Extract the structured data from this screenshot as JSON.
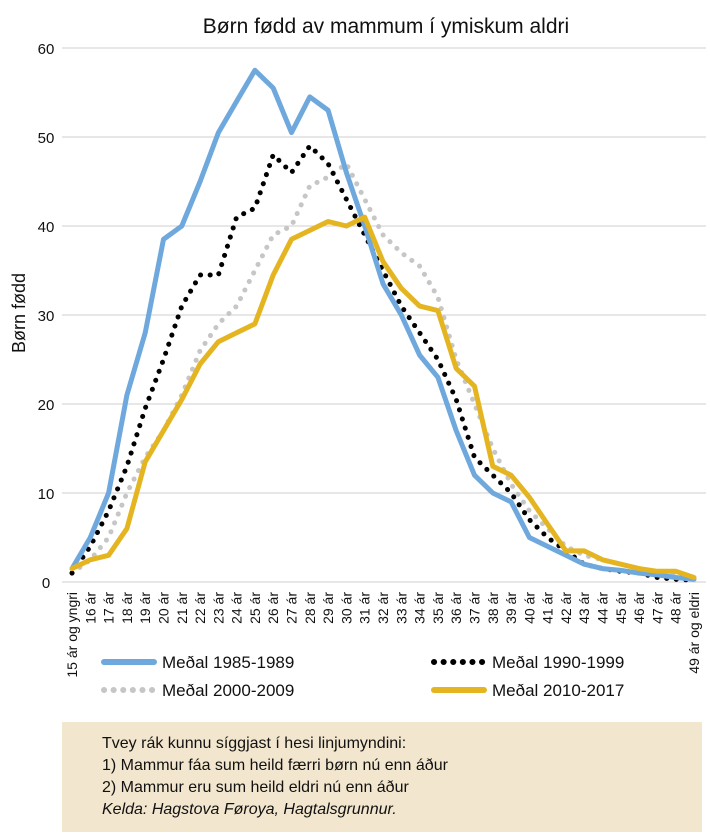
{
  "chart_data": {
    "type": "line",
    "title": "Børn fødd av mammum í ymiskum aldri",
    "ylabel": "Børn fødd",
    "xlabel": "",
    "ylim": [
      0,
      60
    ],
    "yticks": [
      0,
      10,
      20,
      30,
      40,
      50,
      60
    ],
    "grid": "horizontal",
    "legend": "bottom",
    "categories": [
      "15 ár og yngri",
      "16 ár",
      "17 ár",
      "18 ár",
      "19 ár",
      "20 ár",
      "21 ár",
      "22 ár",
      "23 ár",
      "24 ár",
      "25 ár",
      "26 ár",
      "27 ár",
      "28 ár",
      "29 ár",
      "30 ár",
      "31 ár",
      "32 ár",
      "33 ár",
      "34 ár",
      "35 ár",
      "36 ár",
      "37 ár",
      "38 ár",
      "39 ár",
      "40 ár",
      "41 ár",
      "42 ár",
      "43 ár",
      "44 ár",
      "45 ár",
      "46 ár",
      "47 ár",
      "48 ár",
      "49 ár og eldri"
    ],
    "series": [
      {
        "name": "Meðal 1985-1989",
        "color": "#6fa8dc",
        "style": "solid",
        "values": [
          1.5,
          5,
          10,
          21,
          28,
          38.5,
          40,
          45,
          50.5,
          54,
          57.5,
          55.5,
          50.5,
          54.5,
          53,
          46,
          40,
          33.5,
          30,
          25.5,
          23,
          17,
          12,
          10,
          9,
          5,
          4,
          3,
          2,
          1.5,
          1.3,
          1,
          0.8,
          0.5,
          0.3
        ]
      },
      {
        "name": "Meðal 1990-1999",
        "color": "#000000",
        "style": "dotted",
        "values": [
          1,
          4,
          8,
          13,
          19.5,
          25,
          31,
          34.5,
          34.5,
          41,
          42,
          48,
          46,
          49,
          47,
          43,
          39,
          35,
          31,
          28,
          25,
          20.5,
          14,
          12,
          10,
          7,
          5,
          3.5,
          2,
          1.5,
          1.2,
          1,
          0.5,
          0.3,
          0.2
        ]
      },
      {
        "name": "Meðal 2000-2009",
        "color": "#c6c6c6",
        "style": "dotted",
        "values": [
          1,
          2.5,
          5,
          10,
          14,
          17,
          21,
          26,
          29,
          31,
          35,
          39,
          40,
          44.5,
          45.5,
          47,
          43,
          39,
          37,
          35.5,
          32,
          25,
          20,
          15,
          11,
          8,
          6,
          4,
          3,
          2.5,
          2,
          1.5,
          1,
          0.8,
          0.5
        ]
      },
      {
        "name": "Meðal 2010-2017",
        "color": "#e4b521",
        "style": "solid",
        "values": [
          1.5,
          2.5,
          3,
          6,
          13.5,
          17,
          20.5,
          24.5,
          27,
          28,
          29,
          34.5,
          38.5,
          39.5,
          40.5,
          40,
          41,
          36,
          33,
          31,
          30.5,
          24,
          22,
          13,
          12,
          9.5,
          6.5,
          3.5,
          3.5,
          2.5,
          2,
          1.5,
          1.2,
          1.2,
          0.5
        ]
      }
    ]
  },
  "notes": {
    "line1": "Tvey rák kunnu síggjast í hesi linjumyndini:",
    "line2": "1) Mammur fáa sum heild færri børn nú enn áður",
    "line3": "2) Mammur eru sum heild eldri nú enn áður",
    "source": "Kelda: Hagstova Føroya, Hagtalsgrunnur."
  }
}
